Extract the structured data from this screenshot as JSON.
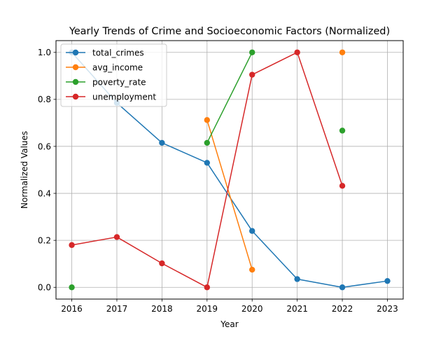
{
  "chart_data": {
    "type": "line",
    "title": "Yearly Trends of Crime and Socioeconomic Factors (Normalized)",
    "xlabel": "Year",
    "ylabel": "Normalized Values",
    "xlim": [
      2015.65,
      2023.35
    ],
    "ylim": [
      -0.05,
      1.05
    ],
    "x_ticks": [
      2016,
      2017,
      2018,
      2019,
      2020,
      2021,
      2022,
      2023
    ],
    "y_ticks": [
      0.0,
      0.2,
      0.4,
      0.6,
      0.8,
      1.0
    ],
    "y_tick_labels": [
      "0.0",
      "0.2",
      "0.4",
      "0.6",
      "0.8",
      "1.0"
    ],
    "grid": true,
    "legend_position": "top-left",
    "x": [
      2016,
      2017,
      2018,
      2019,
      2020,
      2021,
      2022,
      2023
    ],
    "series": [
      {
        "name": "total_crimes",
        "color": "#1f77b4",
        "values": [
          1.0,
          0.785,
          0.615,
          0.53,
          0.24,
          0.035,
          0.0,
          0.027
        ]
      },
      {
        "name": "avg_income",
        "color": "#ff7f0e",
        "values": [
          null,
          null,
          null,
          0.712,
          0.075,
          null,
          1.0,
          null
        ]
      },
      {
        "name": "poverty_rate",
        "color": "#2ca02c",
        "values": [
          0.0,
          null,
          null,
          0.615,
          1.0,
          null,
          0.667,
          null
        ]
      },
      {
        "name": "unemployment",
        "color": "#d62728",
        "values": [
          0.18,
          0.214,
          0.102,
          0.0,
          0.905,
          1.0,
          0.432,
          null
        ]
      }
    ]
  }
}
